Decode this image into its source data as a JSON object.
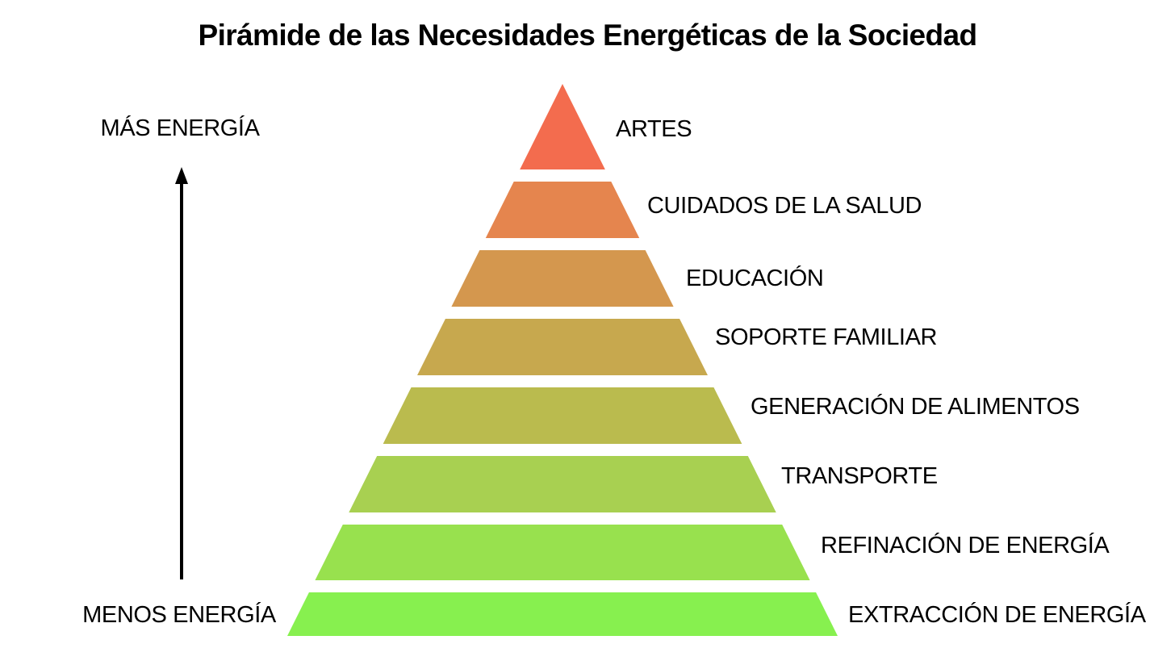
{
  "title": "Pirámide de las Necesidades Energéticas de la Sociedad",
  "axis": {
    "top_label": "MÁS ENERGÍA",
    "bottom_label": "MENOS ENERGÍA",
    "arrow_color": "#000000"
  },
  "levels": [
    {
      "label": "ARTES",
      "color": "#F36C4E"
    },
    {
      "label": "CUIDADOS DE LA SALUD",
      "color": "#E5854E"
    },
    {
      "label": "EDUCACIÓN",
      "color": "#D4974E"
    },
    {
      "label": "SOPORTE FAMILIAR",
      "color": "#C7A84E"
    },
    {
      "label": "GENERACIÓN DE ALIMENTOS",
      "color": "#BABB4E"
    },
    {
      "label": "TRANSPORTE",
      "color": "#A8D051"
    },
    {
      "label": "REFINACIÓN DE ENERGÍA",
      "color": "#98E14E"
    },
    {
      "label": "EXTRACCIÓN DE ENERGÍA",
      "color": "#87F04F"
    }
  ]
}
